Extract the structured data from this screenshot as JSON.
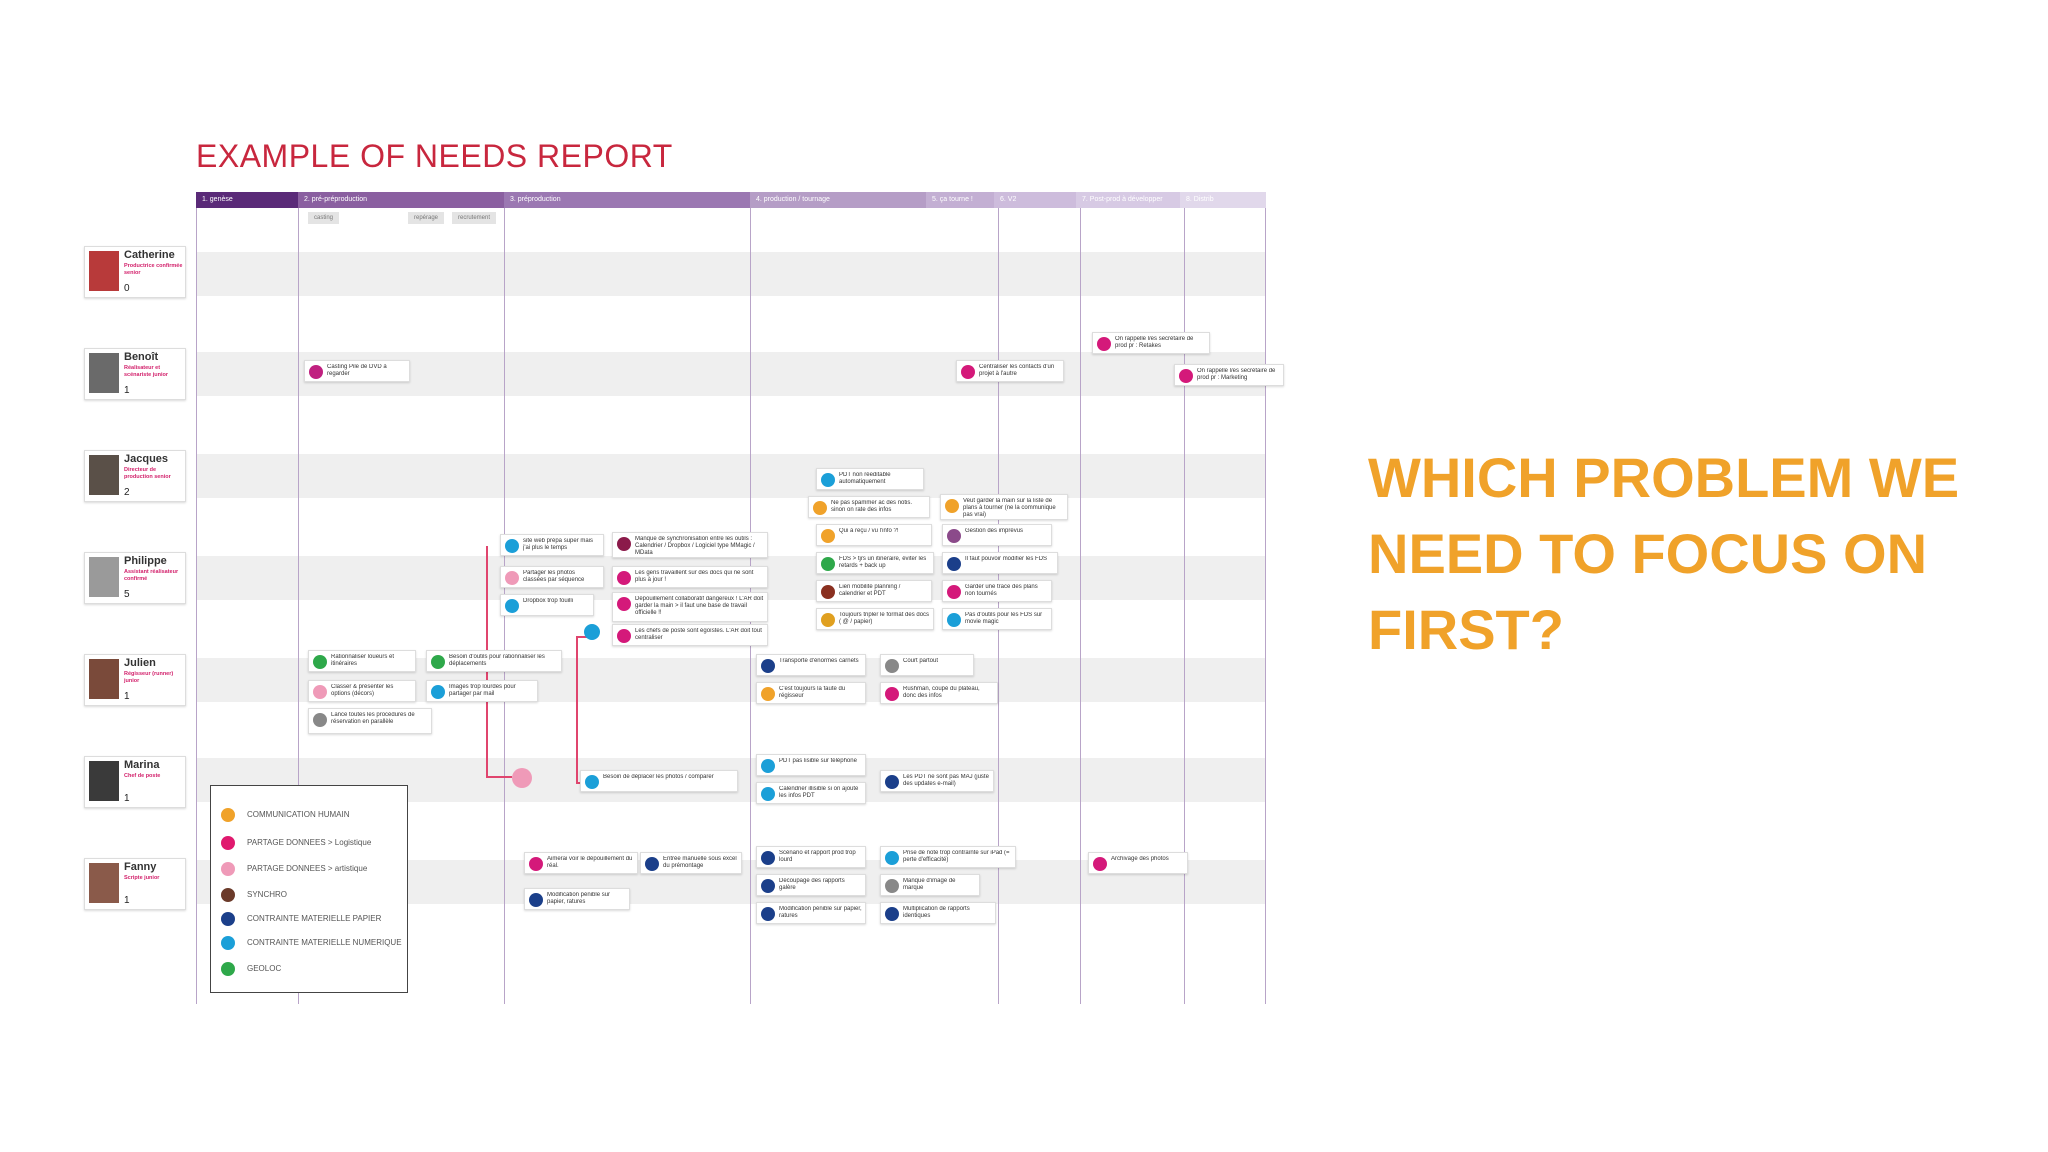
{
  "title": "EXAMPLE OF NEEDS REPORT",
  "question": "WHICH PROBLEM WE NEED TO FOCUS ON FIRST?",
  "phases": [
    "1. genèse",
    "2. pré-préproduction",
    "3. préproduction",
    "4. production / tournage",
    "5. ça tourne !",
    "6. V2",
    "7. Post-prod à développer",
    "8. Distrib"
  ],
  "phase_colors": [
    "#5a2a78",
    "#8a5fa0",
    "#9b78b2",
    "#b59dc6",
    "#c3afd3",
    "#cdbcdc",
    "#d7cae4",
    "#e1d8eb"
  ],
  "subtags": [
    "casting",
    "repérage",
    "recrutement"
  ],
  "personas": [
    {
      "name": "Catherine",
      "role": "Productrice confirmée senior",
      "count": "0"
    },
    {
      "name": "Benoît",
      "role": "Réalisateur et scénariste junior",
      "count": "1"
    },
    {
      "name": "Jacques",
      "role": "Directeur de production senior",
      "count": "2"
    },
    {
      "name": "Philippe",
      "role": "Assistant réalisateur confirmé",
      "count": "5"
    },
    {
      "name": "Julien",
      "role": "Régisseur (runner) junior",
      "count": "1"
    },
    {
      "name": "Marina",
      "role": "Chef de poste",
      "count": "1"
    },
    {
      "name": "Fanny",
      "role": "Scripte junior",
      "count": "1"
    }
  ],
  "cards": [
    {
      "text": "On rappelle l/es secrétaire de prod pr : Retakes",
      "color": "#d4197a"
    },
    {
      "text": "On rappelle l/es secrétaire de prod pr : Marketing",
      "color": "#d4197a"
    },
    {
      "text": "Casting Pile de DVD à regarder",
      "color": "#c02080"
    },
    {
      "text": "Centraliser les contacts d'un projet à l'autre",
      "color": "#d4197a"
    },
    {
      "text": "PDT non réeditable automatiquement",
      "color": "#1b9fd8"
    },
    {
      "text": "Ne pas spammer ac des notis. sinon on rate des infos",
      "color": "#f0a22a"
    },
    {
      "text": "Veut garder la main sur la liste de plans à tourner (ne la communique pas vrai)",
      "color": "#f0a22a"
    },
    {
      "text": "Qui à reçu / vu l'info ?!",
      "color": "#f0a22a"
    },
    {
      "text": "Gestion des imprévus",
      "color": "#8b4a8a"
    },
    {
      "text": "FDS > tjrs un itinéraire, éviter les retards + back up",
      "color": "#2ea84a"
    },
    {
      "text": "Il faut pouvoir modifier les FDS",
      "color": "#1b3f8a"
    },
    {
      "text": "Lien mobilité planning / calendrier et PDT",
      "color": "#8a3020"
    },
    {
      "text": "Garder une trace des plans non tournés",
      "color": "#d4197a"
    },
    {
      "text": "Toujours tripler le format des docs ( @ / papier)",
      "color": "#e0a020"
    },
    {
      "text": "Pas d'outils pour les FDS sur movie magic",
      "color": "#1b9fd8"
    },
    {
      "text": "site web prépa super mais j'ai plus le temps",
      "color": "#1b9fd8"
    },
    {
      "text": "Manque de synchronisation entre les outils : Calendrier / Dropbox / Logiciel type MMagic / MData",
      "color": "#8b1a4a"
    },
    {
      "text": "Partager les photos classées par séquence",
      "color": "#ef9ab8"
    },
    {
      "text": "Les gens travaillent sur des docs qui ne sont plus à jour !",
      "color": "#d4197a"
    },
    {
      "text": "Dropbox trop fouilli",
      "color": "#1b9fd8"
    },
    {
      "text": "Dépouillement collaboratif dangereux ! L'AR doit garder la main > il faut une base de travail officielle !!",
      "color": "#d4197a"
    },
    {
      "text": "Les chefs de poste sont égoïstes. L'AR doit tout centraliser",
      "color": "#d4197a"
    },
    {
      "text": "Rationnaliser loueurs et itinéraires",
      "color": "#2ea84a"
    },
    {
      "text": "Besoin d'outils pour rationnaliser les déplacements",
      "color": "#2ea84a"
    },
    {
      "text": "Classer & présenter les options (décors)",
      "color": "#ef9ab8"
    },
    {
      "text": "Images trop lourdes pour partager par mail",
      "color": "#1b9fd8"
    },
    {
      "text": "Lance toutes les procédures de réservation en parallèle",
      "color": "#888888"
    },
    {
      "text": "Transporte d'énormes carnets",
      "color": "#1b3f8a"
    },
    {
      "text": "Court partout",
      "color": "#888888"
    },
    {
      "text": "C'est toujours la faute du régisseur",
      "color": "#f0a22a"
    },
    {
      "text": "Rushman, coupé du plateau, donc des infos",
      "color": "#d4197a"
    },
    {
      "text": "PDT pas lisible sur téléphone",
      "color": "#1b9fd8"
    },
    {
      "text": "Calendrier illisible si on ajoute les infos PDT",
      "color": "#1b9fd8"
    },
    {
      "text": "Les PDT ne sont pas MAJ (juste des updates e-mail)",
      "color": "#1b3f8a"
    },
    {
      "text": "Besoin de déplacer les photos / comparer",
      "color": "#1b9fd8"
    },
    {
      "text": "Aimerai voir le dépouillement du réal.",
      "color": "#d4197a"
    },
    {
      "text": "Entrée manuelle sous excel du prémontage",
      "color": "#1b3f8a"
    },
    {
      "text": "Modification pénible sur papier, ratures",
      "color": "#1b3f8a"
    },
    {
      "text": "Scénario et rapport prod trop lourd",
      "color": "#1b3f8a"
    },
    {
      "text": "Prise de note trop contraînte sur iPad (= perte d'efficacité)",
      "color": "#1b9fd8"
    },
    {
      "text": "Découpage des rapports galère",
      "color": "#1b3f8a"
    },
    {
      "text": "Manque d'image de marque",
      "color": "#888888"
    },
    {
      "text": "Modification pénible sur papier, ratures",
      "color": "#1b3f8a"
    },
    {
      "text": "Multiplication de rapports identiques",
      "color": "#1b3f8a"
    },
    {
      "text": "Archivage des photos",
      "color": "#d4197a"
    }
  ],
  "legend": [
    {
      "label": "COMMUNICATION HUMAIN",
      "color": "#f0a22a"
    },
    {
      "label": "PARTAGE DONNEES > Logistique",
      "color": "#e0196e"
    },
    {
      "label": "PARTAGE DONNEES > artistique",
      "color": "#ef9ab8"
    },
    {
      "label": "SYNCHRO",
      "color": "#6b3a2a"
    },
    {
      "label": "CONTRAINTE MATERIELLE PAPIER",
      "color": "#1b3f8a"
    },
    {
      "label": "CONTRAINTE MATERIELLE NUMERIQUE",
      "color": "#1b9fd8"
    },
    {
      "label": "GEOLOC",
      "color": "#2ea84a"
    }
  ]
}
